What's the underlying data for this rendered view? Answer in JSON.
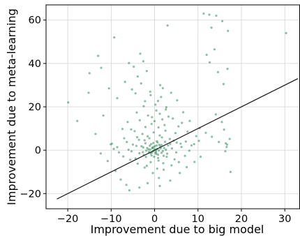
{
  "chart_data": {
    "type": "scatter",
    "title": "",
    "xlabel": "Improvement due to big model",
    "ylabel": "Improvement due to meta-learning",
    "xlim": [
      -25,
      33.5
    ],
    "ylim": [
      -27,
      67
    ],
    "xticks": [
      -20,
      -10,
      0,
      10,
      20,
      30
    ],
    "yticks": [
      -20,
      0,
      20,
      40,
      60
    ],
    "grid": true,
    "point_color": "#2e8b57",
    "line_color": "#222222",
    "reference_line": {
      "x": [
        -22.5,
        33
      ],
      "y": [
        -22.5,
        33
      ]
    },
    "series": [
      {
        "points": [
          [
            -0.5,
            1.2
          ],
          [
            0.3,
            -0.8
          ],
          [
            1.1,
            2.5
          ],
          [
            -1.4,
            0.4
          ],
          [
            0.8,
            -2.1
          ],
          [
            2.2,
            1.0
          ],
          [
            -2.1,
            3.2
          ],
          [
            0.0,
            0.5
          ],
          [
            1.6,
            -1.2
          ],
          [
            -0.9,
            -1.5
          ],
          [
            3.1,
            2.2
          ],
          [
            -3.0,
            1.8
          ],
          [
            0.5,
            4.1
          ],
          [
            -1.2,
            5.5
          ],
          [
            2.8,
            -3.0
          ],
          [
            -2.5,
            -2.2
          ],
          [
            4.0,
            0.8
          ],
          [
            -4.2,
            2.0
          ],
          [
            1.2,
            6.8
          ],
          [
            -0.2,
            8.2
          ],
          [
            0.9,
            10.5
          ],
          [
            -0.7,
            12.1
          ],
          [
            1.8,
            14.2
          ],
          [
            -1.5,
            16.0
          ],
          [
            0.4,
            18.3
          ],
          [
            2.5,
            9.0
          ],
          [
            -2.8,
            7.5
          ],
          [
            3.5,
            5.2
          ],
          [
            -3.6,
            4.8
          ],
          [
            5.1,
            3.5
          ],
          [
            -5.0,
            2.6
          ],
          [
            6.2,
            1.5
          ],
          [
            -6.0,
            0.2
          ],
          [
            4.6,
            -4.2
          ],
          [
            -4.4,
            -3.8
          ],
          [
            2.0,
            -6.0
          ],
          [
            -1.8,
            -7.2
          ],
          [
            0.6,
            -8.5
          ],
          [
            -0.4,
            -10.5
          ],
          [
            1.0,
            -12.8
          ],
          [
            7.2,
            4.0
          ],
          [
            -7.0,
            5.5
          ],
          [
            8.5,
            2.2
          ],
          [
            -8.2,
            -1.0
          ],
          [
            9.6,
            6.5
          ],
          [
            -9.8,
            3.0
          ],
          [
            5.5,
            11.0
          ],
          [
            -5.4,
            9.6
          ],
          [
            3.2,
            15.5
          ],
          [
            -3.4,
            13.8
          ],
          [
            0.2,
            21.0
          ],
          [
            1.5,
            24.5
          ],
          [
            -1.0,
            27.0
          ],
          [
            2.7,
            19.8
          ],
          [
            -2.2,
            22.6
          ],
          [
            -6.8,
            31.5
          ],
          [
            -5.2,
            28.0
          ],
          [
            -3.9,
            34.0
          ],
          [
            -4.8,
            38.5
          ],
          [
            -2.6,
            41.0
          ],
          [
            -3.3,
            44.5
          ],
          [
            -5.9,
            40.2
          ],
          [
            -1.8,
            36.5
          ],
          [
            1.3,
            30.0
          ],
          [
            3.8,
            26.5
          ],
          [
            5.2,
            23.0
          ],
          [
            6.6,
            17.5
          ],
          [
            8.1,
            13.5
          ],
          [
            10.4,
            10.2
          ],
          [
            11.8,
            8.0
          ],
          [
            13.2,
            6.2
          ],
          [
            14.8,
            3.8
          ],
          [
            16.4,
            3.2
          ],
          [
            16.6,
            1.5
          ],
          [
            16.3,
            -0.5
          ],
          [
            16.7,
            2.6
          ],
          [
            15.5,
            13.0
          ],
          [
            16.0,
            9.5
          ],
          [
            17.3,
            5.2
          ],
          [
            14.1,
            16.5
          ],
          [
            11.3,
            63.0
          ],
          [
            12.6,
            62.5
          ],
          [
            14.2,
            62.0
          ],
          [
            15.6,
            59.5
          ],
          [
            16.9,
            55.0
          ],
          [
            13.1,
            56.5
          ],
          [
            12.0,
            44.0
          ],
          [
            13.8,
            46.5
          ],
          [
            12.7,
            40.5
          ],
          [
            14.6,
            36.0
          ],
          [
            16.8,
            37.5
          ],
          [
            15.9,
            30.5
          ],
          [
            17.5,
            -10.0
          ],
          [
            30.3,
            54.0
          ],
          [
            3.0,
            57.5
          ],
          [
            -19.9,
            22.0
          ],
          [
            -17.8,
            13.5
          ],
          [
            -15.2,
            26.5
          ],
          [
            -15.0,
            35.5
          ],
          [
            -13.0,
            43.5
          ],
          [
            -12.3,
            38.0
          ],
          [
            -9.3,
            52.0
          ],
          [
            -10.5,
            28.5
          ],
          [
            -8.6,
            24.0
          ],
          [
            -11.8,
            16.0
          ],
          [
            -13.6,
            7.5
          ],
          [
            -12.4,
            -1.5
          ],
          [
            -10.8,
            -5.0
          ],
          [
            -9.0,
            -9.5
          ],
          [
            -7.8,
            -13.5
          ],
          [
            -6.5,
            -16.0
          ],
          [
            -5.8,
            -18.5
          ],
          [
            -3.5,
            -17.2
          ],
          [
            -1.6,
            -15.2
          ],
          [
            1.2,
            -16.5
          ],
          [
            3.6,
            -14.0
          ],
          [
            5.8,
            -10.5
          ],
          [
            7.4,
            -7.8
          ],
          [
            9.2,
            -5.4
          ],
          [
            10.6,
            -3.0
          ],
          [
            -0.8,
            2.8
          ],
          [
            0.7,
            3.6
          ],
          [
            -0.1,
            -3.0
          ],
          [
            1.9,
            -0.4
          ],
          [
            -1.9,
            -0.2
          ],
          [
            0.1,
            1.9
          ],
          [
            -0.6,
            -1.1
          ],
          [
            1.4,
            0.9
          ],
          [
            -1.1,
            2.1
          ],
          [
            0.4,
            -1.7
          ],
          [
            2.4,
            3.9
          ],
          [
            -2.3,
            4.6
          ],
          [
            2.9,
            -1.6
          ],
          [
            -2.7,
            -0.9
          ],
          [
            3.6,
            2.9
          ],
          [
            -3.5,
            -1.4
          ],
          [
            1.7,
            5.9
          ],
          [
            -1.6,
            6.4
          ],
          [
            0.9,
            -4.8
          ],
          [
            -0.9,
            -5.5
          ],
          [
            4.4,
            4.4
          ],
          [
            -4.0,
            6.0
          ],
          [
            5.0,
            -1.0
          ],
          [
            -5.3,
            -0.5
          ],
          [
            6.0,
            3.0
          ],
          [
            -6.4,
            3.8
          ],
          [
            4.8,
            7.9
          ],
          [
            -4.6,
            8.8
          ],
          [
            2.3,
            11.6
          ],
          [
            -2.1,
            10.7
          ],
          [
            0.0,
            13.4
          ],
          [
            1.2,
            16.8
          ],
          [
            -0.6,
            15.2
          ],
          [
            2.1,
            -9.0
          ],
          [
            -2.3,
            -8.0
          ],
          [
            3.9,
            -7.0
          ],
          [
            -3.9,
            -6.2
          ],
          [
            5.6,
            -5.5
          ],
          [
            -5.6,
            -4.4
          ],
          [
            7.0,
            -2.6
          ],
          [
            -7.2,
            -2.9
          ],
          [
            8.0,
            -0.2
          ],
          [
            -8.6,
            1.4
          ],
          [
            9.1,
            2.8
          ],
          [
            -9.4,
            0.6
          ],
          [
            10.2,
            4.3
          ],
          [
            -10.1,
            2.7
          ],
          [
            7.6,
            8.6
          ],
          [
            -7.4,
            9.8
          ],
          [
            6.3,
            12.6
          ],
          [
            -6.2,
            13.0
          ],
          [
            4.2,
            14.6
          ],
          [
            -4.1,
            17.4
          ],
          [
            2.6,
            18.8
          ],
          [
            -2.5,
            20.3
          ],
          [
            0.8,
            22.7
          ],
          [
            -0.9,
            25.4
          ],
          [
            1.9,
            28.6
          ],
          [
            -3.1,
            30.8
          ],
          [
            -4.4,
            26.2
          ],
          [
            0.3,
            0.0
          ],
          [
            -0.3,
            -0.4
          ],
          [
            0.6,
            0.6
          ],
          [
            -0.5,
            0.9
          ],
          [
            0.2,
            -1.3
          ],
          [
            -0.2,
            1.5
          ],
          [
            1.0,
            -0.1
          ],
          [
            -1.0,
            0.3
          ],
          [
            0.5,
            2.2
          ],
          [
            -0.7,
            -2.4
          ],
          [
            1.3,
            1.7
          ],
          [
            -1.3,
            -0.8
          ],
          [
            0.8,
            -3.6
          ],
          [
            -0.3,
            3.3
          ],
          [
            1.6,
            2.4
          ],
          [
            -1.7,
            1.0
          ],
          [
            2.1,
            -2.6
          ],
          [
            -2.0,
            -3.1
          ],
          [
            2.6,
            0.2
          ],
          [
            -2.6,
            1.3
          ]
        ]
      }
    ]
  }
}
